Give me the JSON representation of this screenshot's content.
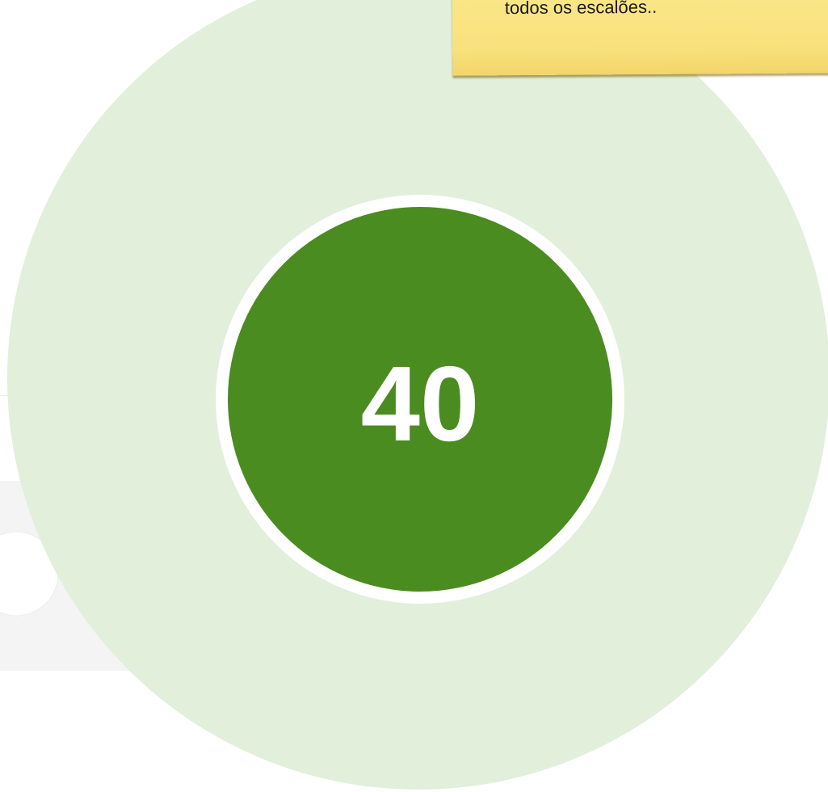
{
  "badge": {
    "value": "40"
  },
  "note": {
    "text": "todos os escalões.."
  }
}
